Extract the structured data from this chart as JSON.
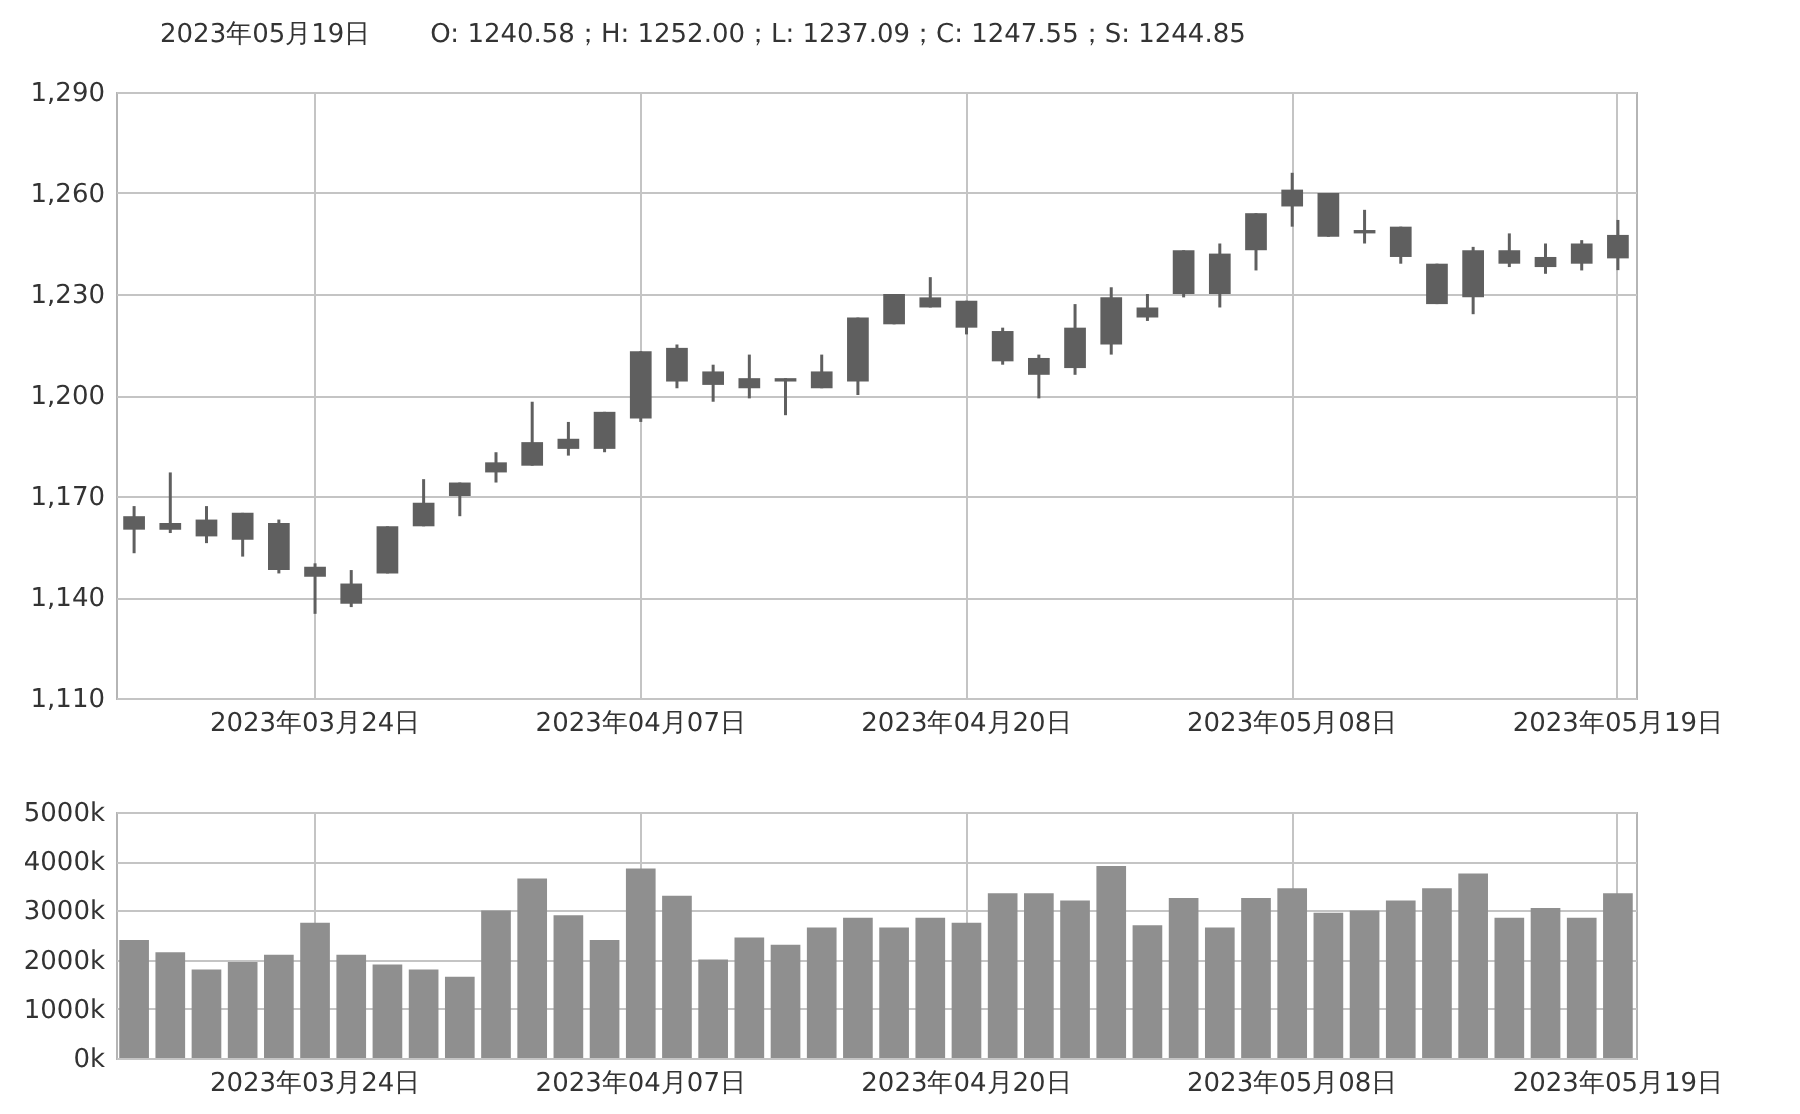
{
  "chart_data": [
    {
      "type": "candlestick",
      "title": "2023年05月19日",
      "subtitle": "O: 1240.58；H: 1252.00；L: 1237.09；C: 1247.55；S: 1244.85",
      "color": "#5f5f5f",
      "grid": true,
      "categories": [
        null,
        null,
        null,
        null,
        null,
        "2023年03月24日",
        null,
        null,
        null,
        null,
        null,
        null,
        null,
        null,
        "2023年04月07日",
        null,
        null,
        null,
        null,
        null,
        null,
        null,
        null,
        "2023年04月20日",
        null,
        null,
        null,
        null,
        null,
        null,
        null,
        null,
        "2023年05月08日",
        null,
        null,
        null,
        null,
        null,
        null,
        null,
        null,
        "2023年05月19日"
      ],
      "ohlc": [
        [
          1160,
          1167,
          1153,
          1164
        ],
        [
          1160,
          1177,
          1159,
          1162
        ],
        [
          1158,
          1167,
          1156,
          1163
        ],
        [
          1157,
          1165,
          1152,
          1165
        ],
        [
          1148,
          1163,
          1147,
          1162
        ],
        [
          1146,
          1150,
          1135,
          1149
        ],
        [
          1138,
          1148,
          1137,
          1144
        ],
        [
          1147,
          1161,
          1147,
          1161
        ],
        [
          1161,
          1175,
          1161,
          1168
        ],
        [
          1170,
          1174,
          1164,
          1174
        ],
        [
          1177,
          1183,
          1174,
          1180
        ],
        [
          1179,
          1198,
          1179,
          1186
        ],
        [
          1184,
          1192,
          1182,
          1187
        ],
        [
          1184,
          1195,
          1183,
          1195
        ],
        [
          1193,
          1213,
          1192,
          1213
        ],
        [
          1204,
          1215,
          1202,
          1214
        ],
        [
          1203,
          1209,
          1198,
          1207
        ],
        [
          1202,
          1212,
          1199,
          1205
        ],
        [
          1204,
          1205,
          1194,
          1205
        ],
        [
          1202,
          1212,
          1202,
          1207
        ],
        [
          1204,
          1223,
          1200,
          1223
        ],
        [
          1221,
          1230,
          1221,
          1230
        ],
        [
          1226,
          1235,
          1226,
          1229
        ],
        [
          1220,
          1228,
          1218,
          1228
        ],
        [
          1210,
          1220,
          1209,
          1219
        ],
        [
          1206,
          1212,
          1199,
          1211
        ],
        [
          1208,
          1227,
          1206,
          1220
        ],
        [
          1215,
          1232,
          1212,
          1229
        ],
        [
          1223,
          1230,
          1222,
          1226
        ],
        [
          1230,
          1243,
          1229,
          1243
        ],
        [
          1230,
          1245,
          1226,
          1242
        ],
        [
          1243,
          1254,
          1237,
          1254
        ],
        [
          1256,
          1266,
          1250,
          1261
        ],
        [
          1247,
          1260,
          1247,
          1260
        ],
        [
          1248,
          1255,
          1245,
          1249
        ],
        [
          1241,
          1250,
          1239,
          1250
        ],
        [
          1227,
          1239,
          1227,
          1239
        ],
        [
          1229,
          1244,
          1224,
          1243
        ],
        [
          1239,
          1248,
          1238,
          1243
        ],
        [
          1238,
          1245,
          1236,
          1241
        ],
        [
          1239,
          1246,
          1237,
          1245
        ],
        [
          1240.58,
          1252.0,
          1237.09,
          1247.55
        ]
      ],
      "ylim": [
        1110,
        1290
      ],
      "yticks": [
        {
          "value": 1110,
          "label": "1,110"
        },
        {
          "value": 1140,
          "label": "1,140"
        },
        {
          "value": 1170,
          "label": "1,170"
        },
        {
          "value": 1200,
          "label": "1,200"
        },
        {
          "value": 1230,
          "label": "1,230"
        },
        {
          "value": 1260,
          "label": "1,260"
        },
        {
          "value": 1290,
          "label": "1,290"
        }
      ]
    },
    {
      "type": "bar",
      "color": "#8f8f8f",
      "grid": true,
      "categories": [
        null,
        null,
        null,
        null,
        null,
        "2023年03月24日",
        null,
        null,
        null,
        null,
        null,
        null,
        null,
        null,
        "2023年04月07日",
        null,
        null,
        null,
        null,
        null,
        null,
        null,
        null,
        "2023年04月20日",
        null,
        null,
        null,
        null,
        null,
        null,
        null,
        null,
        "2023年05月08日",
        null,
        null,
        null,
        null,
        null,
        null,
        null,
        null,
        "2023年05月19日"
      ],
      "values": [
        2400,
        2150,
        1800,
        1950,
        2100,
        2750,
        2100,
        1900,
        1800,
        1650,
        3000,
        3650,
        2900,
        2400,
        3850,
        3300,
        2000,
        2450,
        2300,
        2650,
        2850,
        2650,
        2850,
        2750,
        3350,
        3350,
        3200,
        3900,
        2700,
        3250,
        2650,
        3250,
        3450,
        2950,
        3000,
        3200,
        3450,
        3750,
        2850,
        3050,
        2850,
        3350
      ],
      "ylim": [
        0,
        5000
      ],
      "yticks": [
        {
          "value": 0,
          "label": "0k"
        },
        {
          "value": 1000,
          "label": "1000k"
        },
        {
          "value": 2000,
          "label": "2000k"
        },
        {
          "value": 3000,
          "label": "3000k"
        },
        {
          "value": 4000,
          "label": "4000k"
        },
        {
          "value": 5000,
          "label": "5000k"
        }
      ]
    }
  ]
}
